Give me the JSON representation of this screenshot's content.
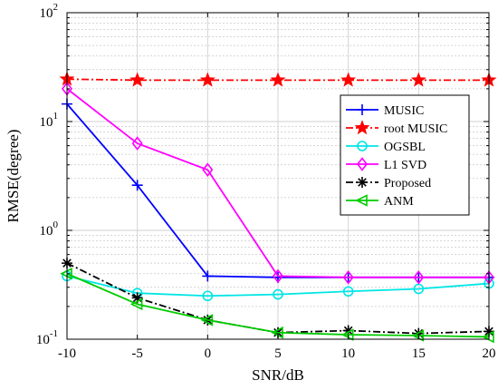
{
  "chart_data": {
    "type": "line",
    "title": "",
    "xlabel": "SNR/dB",
    "ylabel": "RMSE(degree)",
    "yscale": "log",
    "xlim": [
      -10,
      20
    ],
    "ylim": [
      0.1,
      100
    ],
    "grid": true,
    "legend_position": "right",
    "x": [
      -10,
      -5,
      0,
      5,
      10,
      15,
      20
    ],
    "x_tick_labels": [
      "-10",
      "-5",
      "0",
      "5",
      "10",
      "15",
      "20"
    ],
    "y_ticks": [
      {
        "value": 0.1,
        "base": "10",
        "exp": "-1"
      },
      {
        "value": 1,
        "base": "10",
        "exp": "0"
      },
      {
        "value": 10,
        "base": "10",
        "exp": "1"
      },
      {
        "value": 100,
        "base": "10",
        "exp": "2"
      }
    ],
    "series": [
      {
        "name": "MUSIC",
        "color": "#0000ff",
        "dash": "solid",
        "marker": "plus",
        "values": [
          14.5,
          2.6,
          0.38,
          0.37,
          0.37,
          0.37,
          0.37
        ]
      },
      {
        "name": "root MUSIC",
        "color": "#ff0000",
        "dash": "dashdot",
        "marker": "star",
        "values": [
          24.5,
          24.0,
          24.0,
          24.0,
          24.0,
          24.0,
          24.0
        ]
      },
      {
        "name": "OGSBL",
        "color": "#00e5e5",
        "dash": "solid",
        "marker": "circle",
        "values": [
          0.38,
          0.265,
          0.25,
          0.258,
          0.275,
          0.29,
          0.325
        ]
      },
      {
        "name": "L1 SVD",
        "color": "#ff00ff",
        "dash": "solid",
        "marker": "diamond",
        "values": [
          20.0,
          6.3,
          3.6,
          0.38,
          0.37,
          0.37,
          0.37
        ]
      },
      {
        "name": "Proposed",
        "color": "#000000",
        "dash": "dashdot",
        "marker": "asterisk",
        "values": [
          0.5,
          0.24,
          0.15,
          0.115,
          0.12,
          0.113,
          0.118
        ]
      },
      {
        "name": "ANM",
        "color": "#00cc00",
        "dash": "solid",
        "marker": "triangle-left",
        "values": [
          0.4,
          0.21,
          0.15,
          0.115,
          0.11,
          0.108,
          0.105
        ]
      }
    ]
  }
}
